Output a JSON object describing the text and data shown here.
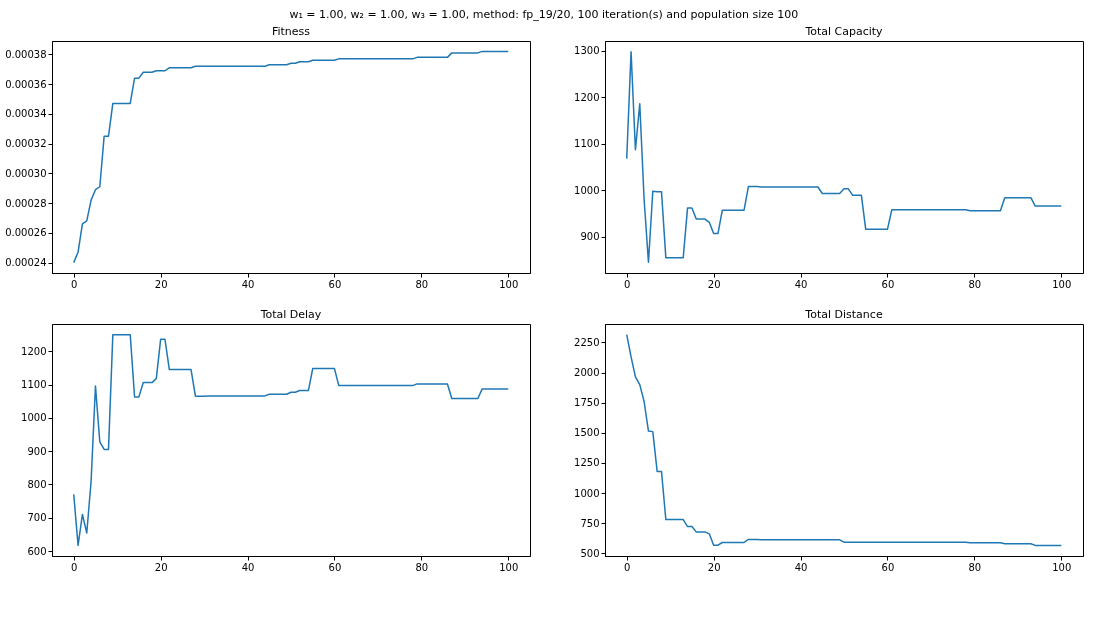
{
  "chart_data": [
    {
      "type": "line",
      "title": "Fitness",
      "annotations": [
        "w₁ = 1.00, w₂ = 1.00, w₃ = 1.00, method: fp_19/20, 100 iteration(s) and population size 100"
      ],
      "color": "#1f77b4",
      "grid": false,
      "x": [
        0,
        1,
        2,
        3,
        4,
        5,
        6,
        7,
        8,
        9,
        13,
        14,
        15,
        16,
        18,
        19,
        21,
        22,
        27,
        28,
        31,
        44,
        45,
        49,
        50,
        51,
        52,
        54,
        55,
        60,
        61,
        78,
        79,
        86,
        87,
        93,
        94,
        100
      ],
      "values": [
        0.00024,
        0.000247,
        0.000266,
        0.000268,
        0.000282,
        0.000289,
        0.000291,
        0.000325,
        0.000325,
        0.000347,
        0.000347,
        0.000364,
        0.000364,
        0.000368,
        0.000368,
        0.000369,
        0.000369,
        0.000371,
        0.000371,
        0.000372,
        0.000372,
        0.000372,
        0.000373,
        0.000373,
        0.000374,
        0.000374,
        0.000375,
        0.000375,
        0.000376,
        0.000376,
        0.000377,
        0.000377,
        0.000378,
        0.000378,
        0.000381,
        0.000381,
        0.000382,
        0.000382
      ],
      "xlim": [
        -5,
        105
      ],
      "xticks": [
        0,
        20,
        40,
        60,
        80,
        100
      ],
      "ylim": [
        0.000233,
        0.000389
      ],
      "yticks": [
        0.00024,
        0.00026,
        0.00028,
        {
          "value": 0.0003,
          "label": "0.00030"
        },
        0.00032,
        0.00034,
        0.00036,
        0.00038
      ]
    },
    {
      "type": "line",
      "title": "Total Capacity",
      "color": "#1f77b4",
      "grid": false,
      "x": [
        0,
        1,
        2,
        3,
        4,
        5,
        6,
        7,
        8,
        9,
        13,
        14,
        15,
        16,
        18,
        19,
        20,
        21,
        22,
        27,
        28,
        30,
        31,
        44,
        45,
        49,
        50,
        51,
        52,
        54,
        55,
        60,
        61,
        78,
        79,
        86,
        87,
        93,
        94,
        100
      ],
      "values": [
        1068,
        1298,
        1087,
        1186,
        980,
        845,
        998,
        997,
        997,
        855,
        855,
        962,
        962,
        938,
        938,
        931,
        907,
        907,
        957,
        957,
        1008,
        1008,
        1007,
        1007,
        993,
        993,
        1003,
        1003,
        989,
        989,
        916,
        916,
        958,
        958,
        956,
        956,
        984,
        984,
        966,
        966
      ],
      "xlim": [
        -5,
        105
      ],
      "xticks": [
        0,
        20,
        40,
        60,
        80,
        100
      ],
      "ylim": [
        822,
        1321
      ],
      "yticks": [
        900,
        1000,
        1100,
        1200,
        1300
      ]
    },
    {
      "type": "line",
      "title": "Total Delay",
      "color": "#1f77b4",
      "grid": false,
      "x": [
        0,
        1,
        2,
        3,
        4,
        5,
        6,
        7,
        8,
        9,
        13,
        14,
        15,
        16,
        18,
        19,
        20,
        21,
        22,
        27,
        28,
        30,
        31,
        44,
        45,
        49,
        50,
        51,
        52,
        54,
        55,
        60,
        61,
        78,
        79,
        86,
        87,
        93,
        94,
        100
      ],
      "values": [
        770,
        617,
        710,
        654,
        810,
        1096,
        928,
        905,
        905,
        1250,
        1250,
        1063,
        1063,
        1106,
        1106,
        1118,
        1236,
        1236,
        1145,
        1145,
        1065,
        1065,
        1066,
        1066,
        1071,
        1071,
        1077,
        1077,
        1082,
        1082,
        1148,
        1148,
        1097,
        1097,
        1102,
        1102,
        1058,
        1058,
        1087,
        1087
      ],
      "xlim": [
        -5,
        105
      ],
      "xticks": [
        0,
        20,
        40,
        60,
        80,
        100
      ],
      "ylim": [
        585,
        1282
      ],
      "yticks": [
        600,
        700,
        800,
        900,
        1000,
        1100,
        1200
      ]
    },
    {
      "type": "line",
      "title": "Total Distance",
      "color": "#1f77b4",
      "grid": false,
      "x": [
        0,
        1,
        2,
        3,
        4,
        5,
        6,
        7,
        8,
        9,
        13,
        14,
        15,
        16,
        18,
        19,
        20,
        21,
        22,
        27,
        28,
        30,
        31,
        49,
        50,
        78,
        79,
        86,
        87,
        93,
        94,
        100
      ],
      "values": [
        2315,
        2130,
        1965,
        1900,
        1760,
        1515,
        1510,
        1180,
        1180,
        780,
        780,
        722,
        722,
        678,
        678,
        662,
        568,
        568,
        590,
        590,
        615,
        615,
        612,
        612,
        593,
        593,
        588,
        588,
        580,
        580,
        566,
        566
      ],
      "xlim": [
        -5,
        105
      ],
      "xticks": [
        0,
        20,
        40,
        60,
        80,
        100
      ],
      "ylim": [
        478,
        2403
      ],
      "yticks": [
        500,
        750,
        1000,
        1250,
        1500,
        1750,
        2000,
        2250
      ]
    }
  ]
}
